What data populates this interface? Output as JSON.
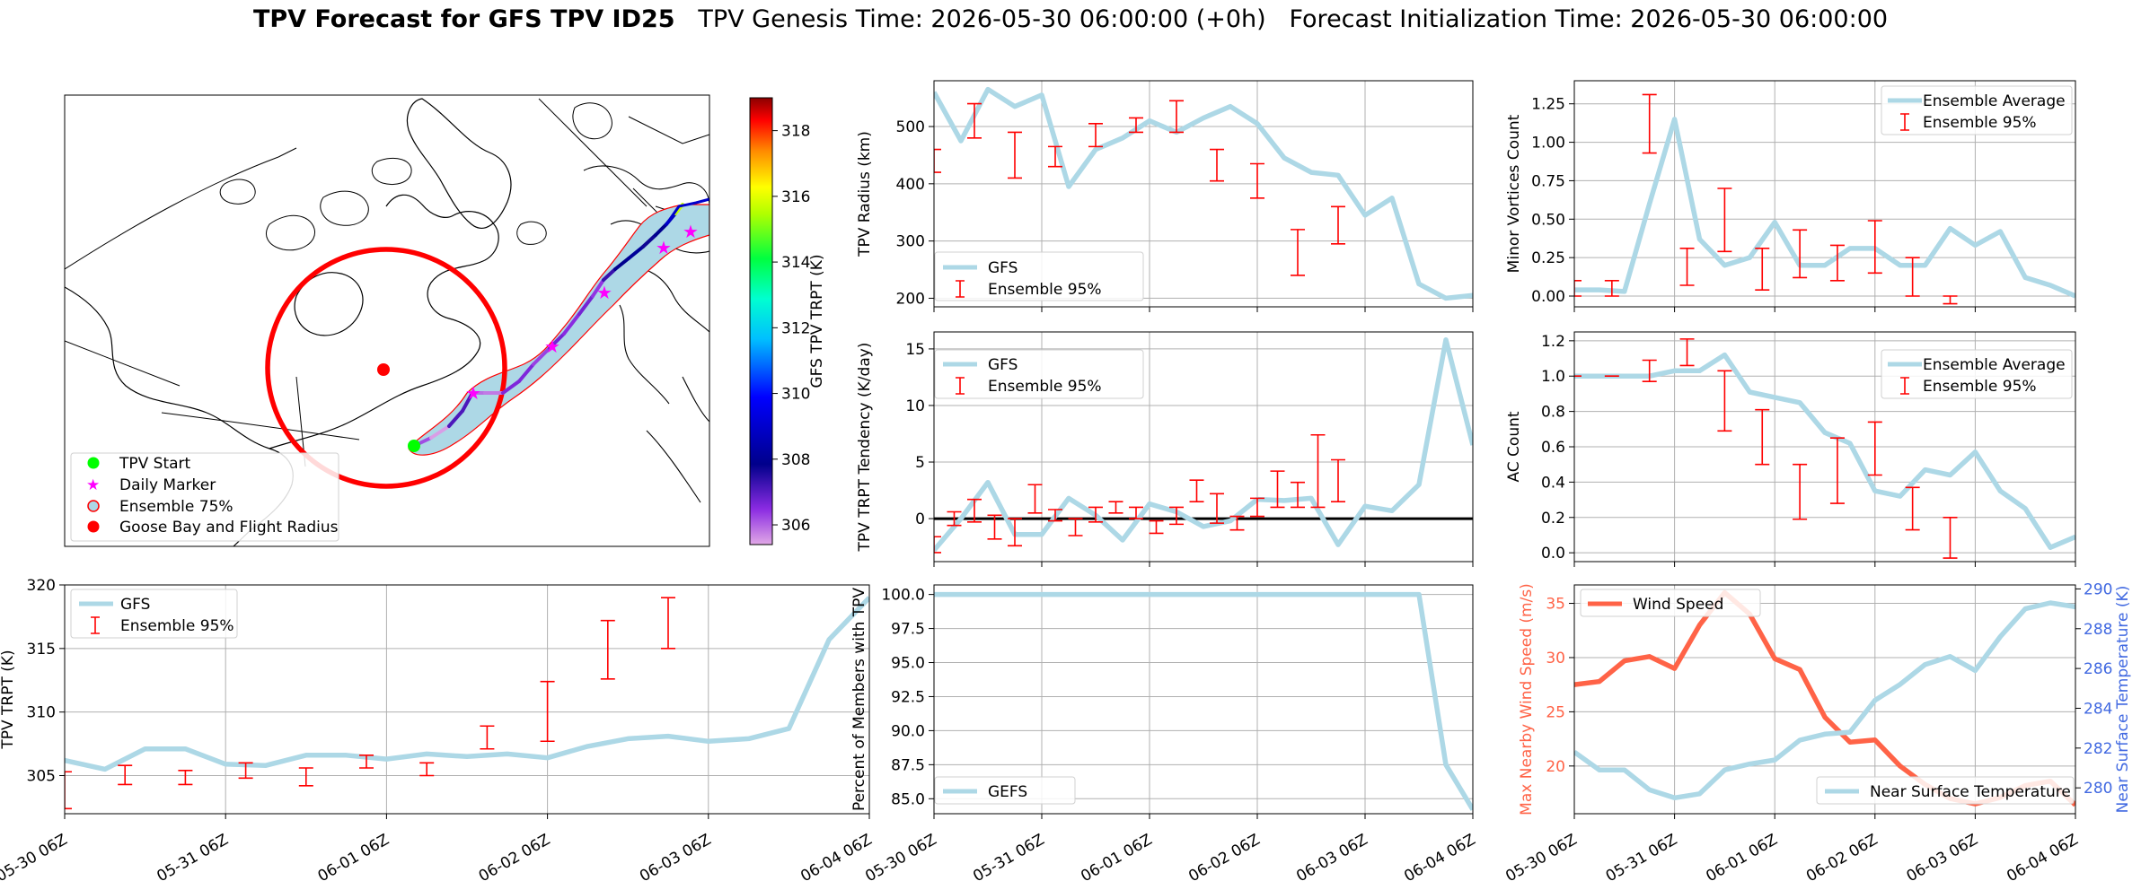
{
  "title": {
    "bold": "TPV Forecast for GFS TPV ID25",
    "genesis": "TPV Genesis Time: 2026-05-30 06:00:00 (+0h)",
    "init": "Forecast Initialization Time: 2026-05-30 06:00:00"
  },
  "colors": {
    "gfs_line": "#add8e6",
    "ensemble_bar": "#ff0000",
    "wind_line": "#ff6347",
    "temp_axis": "#4169e1",
    "track_dark": "#00008b",
    "ellipse_fill": "#add8e6",
    "circle": "#ff0000",
    "start": "#00ff00",
    "daily": "#ff00ff"
  },
  "x_tick_labels": [
    "05-30 06Z",
    "05-31 06Z",
    "06-01 06Z",
    "06-02 06Z",
    "06-03 06Z",
    "06-04 06Z"
  ],
  "chart_data": [
    {
      "id": "map",
      "type": "map",
      "legend": [
        "TPV Start",
        "Daily Marker",
        "Ensemble 75%",
        "Goose Bay and Flight Radius"
      ],
      "colorbar": {
        "label": "GFS TPV TRPT (K)",
        "range": [
          305.4,
          319.0
        ],
        "ticks": [
          306,
          308,
          310,
          312,
          314,
          316,
          318
        ]
      },
      "track_trpt": [
        306.2,
        305.5,
        307.1,
        307.1,
        305.9,
        305.8,
        306.6,
        306.6,
        306.3,
        306.7,
        306.5,
        306.7,
        306.4,
        307.3,
        307.9,
        308.1,
        307.7,
        307.9,
        308.7,
        315.7,
        319.0
      ]
    },
    {
      "id": "radius",
      "type": "line",
      "ylabel": "TPV Radius (km)",
      "ylim": [
        185,
        580
      ],
      "yticks": [
        200,
        300,
        400,
        500
      ],
      "legend": [
        "GFS",
        "Ensemble 95%"
      ],
      "legend_loc": "lower-left",
      "gfs": [
        560,
        475,
        565,
        535,
        555,
        395,
        460,
        480,
        510,
        490,
        515,
        535,
        505,
        445,
        420,
        415,
        345,
        375,
        225,
        200,
        205
      ],
      "ens": [
        [
          0,
          420,
          460
        ],
        [
          1.5,
          480,
          540
        ],
        [
          3,
          410,
          490
        ],
        [
          4.5,
          430,
          465
        ],
        [
          6,
          465,
          505
        ],
        [
          7.5,
          490,
          515
        ],
        [
          9,
          490,
          545
        ],
        [
          10.5,
          405,
          460
        ],
        [
          12,
          375,
          435
        ],
        [
          13.5,
          240,
          320
        ],
        [
          15,
          295,
          360
        ]
      ]
    },
    {
      "id": "minor",
      "type": "line",
      "ylabel": "Minor Vortices Count",
      "ylim": [
        -0.07,
        1.4
      ],
      "yticks": [
        0.0,
        0.25,
        0.5,
        0.75,
        1.0,
        1.25
      ],
      "legend": [
        "Ensemble Average",
        "Ensemble 95%"
      ],
      "legend_loc": "upper-right",
      "gfs": [
        0.04,
        0.04,
        0.03,
        0.6,
        1.15,
        0.37,
        0.2,
        0.25,
        0.48,
        0.2,
        0.2,
        0.31,
        0.31,
        0.2,
        0.2,
        0.44,
        0.33,
        0.42,
        0.12,
        0.07,
        0.0
      ],
      "ens": [
        [
          0,
          0.0,
          0.1
        ],
        [
          1.5,
          0.0,
          0.1
        ],
        [
          3,
          0.93,
          1.31
        ],
        [
          4.5,
          0.07,
          0.31
        ],
        [
          6,
          0.29,
          0.7
        ],
        [
          7.5,
          0.04,
          0.31
        ],
        [
          9,
          0.12,
          0.43
        ],
        [
          10.5,
          0.1,
          0.33
        ],
        [
          12,
          0.15,
          0.49
        ],
        [
          13.5,
          0.0,
          0.25
        ],
        [
          15,
          -0.05,
          0.0
        ]
      ]
    },
    {
      "id": "tendency",
      "type": "line",
      "ylabel": "TPV TRPT Tendency (K/day)",
      "ylim": [
        -3.8,
        16.5
      ],
      "yticks": [
        0,
        5,
        10,
        15
      ],
      "zero_line": true,
      "legend": [
        "GFS",
        "Ensemble 95%"
      ],
      "legend_loc": "upper-left",
      "gfs": [
        -2.8,
        0.0,
        3.2,
        -1.4,
        -1.4,
        1.8,
        0.3,
        -1.9,
        1.3,
        0.6,
        -0.7,
        -0.2,
        1.7,
        1.6,
        1.8,
        -2.3,
        1.1,
        0.7,
        3.0,
        15.8,
        6.5
      ],
      "ens": [
        [
          0,
          -3.0,
          -1.6
        ],
        [
          0.75,
          -0.6,
          0.6
        ],
        [
          1.5,
          -0.3,
          1.7
        ],
        [
          2.25,
          -1.8,
          0.3
        ],
        [
          3,
          -2.4,
          0.0
        ],
        [
          3.75,
          0.5,
          3.0
        ],
        [
          4.5,
          -0.2,
          0.8
        ],
        [
          5.25,
          -1.5,
          0.0
        ],
        [
          6,
          -0.3,
          1.0
        ],
        [
          6.75,
          0.5,
          1.5
        ],
        [
          7.5,
          0.0,
          1.0
        ],
        [
          8.25,
          -1.3,
          -0.2
        ],
        [
          9,
          -0.5,
          1.0
        ],
        [
          9.75,
          1.5,
          3.4
        ],
        [
          10.5,
          -0.4,
          2.2
        ],
        [
          11.25,
          -1.0,
          0.2
        ],
        [
          12,
          0.2,
          1.8
        ],
        [
          12.75,
          1.0,
          4.2
        ],
        [
          13.5,
          1.0,
          3.2
        ],
        [
          14.25,
          1.0,
          7.4
        ],
        [
          15,
          1.5,
          5.2
        ]
      ]
    },
    {
      "id": "ac",
      "type": "line",
      "ylabel": "AC Count",
      "ylim": [
        -0.05,
        1.25
      ],
      "yticks": [
        0.0,
        0.2,
        0.4,
        0.6,
        0.8,
        1.0,
        1.2
      ],
      "legend": [
        "Ensemble Average",
        "Ensemble 95%"
      ],
      "legend_loc": "upper-right",
      "gfs": [
        1.0,
        1.0,
        1.0,
        1.0,
        1.03,
        1.03,
        1.12,
        0.91,
        0.88,
        0.85,
        0.68,
        0.62,
        0.35,
        0.32,
        0.47,
        0.44,
        0.57,
        0.35,
        0.25,
        0.03,
        0.09
      ],
      "ens": [
        [
          0,
          1.0,
          1.0
        ],
        [
          1.5,
          1.0,
          1.0
        ],
        [
          3,
          0.97,
          1.09
        ],
        [
          4.5,
          1.06,
          1.21
        ],
        [
          6,
          0.69,
          1.03
        ],
        [
          7.5,
          0.5,
          0.81
        ],
        [
          9,
          0.19,
          0.5
        ],
        [
          10.5,
          0.28,
          0.65
        ],
        [
          12,
          0.44,
          0.74
        ],
        [
          13.5,
          0.13,
          0.37
        ],
        [
          15,
          -0.03,
          0.2
        ]
      ]
    },
    {
      "id": "trpt",
      "type": "line",
      "ylabel": "TPV TRPT (K)",
      "ylim": [
        302,
        320
      ],
      "yticks": [
        305,
        310,
        315,
        320
      ],
      "legend": [
        "GFS",
        "Ensemble 95%"
      ],
      "legend_loc": "upper-left",
      "gfs": [
        306.2,
        305.5,
        307.1,
        307.1,
        305.9,
        305.8,
        306.6,
        306.6,
        306.3,
        306.7,
        306.5,
        306.7,
        306.4,
        307.3,
        307.9,
        308.1,
        307.7,
        307.9,
        308.7,
        315.7,
        319.0
      ],
      "ens": [
        [
          0,
          302.4,
          305.3
        ],
        [
          1.5,
          304.3,
          305.8
        ],
        [
          3,
          304.3,
          305.4
        ],
        [
          4.5,
          304.8,
          306.0
        ],
        [
          6,
          304.2,
          305.6
        ],
        [
          7.5,
          305.6,
          306.6
        ],
        [
          9,
          305.0,
          306.0
        ],
        [
          10.5,
          307.1,
          308.9
        ],
        [
          12,
          307.7,
          312.4
        ],
        [
          13.5,
          312.6,
          317.2
        ],
        [
          15,
          315.0,
          319.0
        ]
      ]
    },
    {
      "id": "percent",
      "type": "line",
      "ylabel": "Percent of Members with TPV",
      "ylim": [
        83.9,
        100.7
      ],
      "yticks": [
        85.0,
        87.5,
        90.0,
        92.5,
        95.0,
        97.5,
        100.0
      ],
      "legend": [
        "GEFS"
      ],
      "legend_loc": "lower-left",
      "gfs": [
        100,
        100,
        100,
        100,
        100,
        100,
        100,
        100,
        100,
        100,
        100,
        100,
        100,
        100,
        100,
        100,
        100,
        100,
        100,
        87.5,
        84.2
      ]
    },
    {
      "id": "wind_temp",
      "type": "line",
      "ylabel_left": "Max Nearby Wind Speed (m/s)",
      "ylabel_right": "Near Surface Temperature (K)",
      "ylim_left": [
        15.6,
        36.7
      ],
      "yticks_left": [
        20,
        25,
        30,
        35
      ],
      "ylim_right": [
        278.7,
        290.2
      ],
      "yticks_right": [
        280,
        282,
        284,
        286,
        288,
        290
      ],
      "legend_left": [
        "Wind Speed"
      ],
      "legend_right": [
        "Near Surface Temperature"
      ],
      "wind": [
        27.5,
        27.8,
        29.7,
        30.1,
        29.0,
        33.0,
        36.0,
        34.0,
        29.9,
        28.9,
        24.5,
        22.2,
        22.4,
        20.0,
        18.3,
        17.0,
        16.5,
        17.1,
        18.2,
        18.6,
        16.4
      ],
      "temp": [
        281.8,
        280.9,
        280.9,
        279.9,
        279.5,
        279.7,
        280.9,
        281.2,
        281.4,
        282.4,
        282.7,
        282.8,
        284.4,
        285.2,
        286.2,
        286.6,
        285.9,
        287.6,
        289.0,
        289.3,
        289.1
      ]
    }
  ]
}
